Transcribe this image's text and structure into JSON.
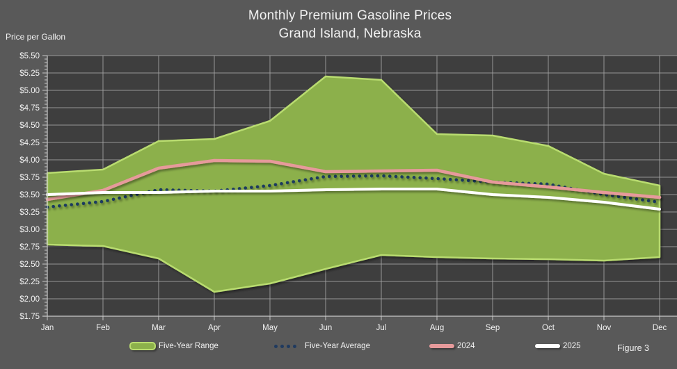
{
  "title": {
    "line1": "Monthly Premium Gasoline Prices",
    "line2": "Grand Island, Nebraska"
  },
  "y_axis_title": "Price per Gallon",
  "figure_label": "Figure 3",
  "legend": [
    {
      "label": "Five-Year Range",
      "swatch": "band"
    },
    {
      "label": "Five-Year Average",
      "swatch": "dotted"
    },
    {
      "label": "2024",
      "swatch": "line"
    },
    {
      "label": "2025",
      "swatch": "line"
    }
  ],
  "chart_data": {
    "type": "area",
    "subtype": "range-band-with-lines",
    "title": "Monthly Premium Gasoline Prices  Grand Island, Nebraska",
    "xlabel": "",
    "ylabel": "Price per Gallon",
    "categories": [
      "Jan",
      "Feb",
      "Mar",
      "Apr",
      "May",
      "Jun",
      "Jul",
      "Aug",
      "Sep",
      "Oct",
      "Nov",
      "Dec"
    ],
    "y_tick_labels": [
      "$5.50",
      "$5.25",
      "$5.00",
      "$4.75",
      "$4.50",
      "$4.25",
      "$4.00",
      "$3.75",
      "$3.50",
      "$3.25",
      "$3.00",
      "$2.75",
      "$2.50",
      "$2.25",
      "$2.00",
      "$1.75"
    ],
    "ylim": [
      1.75,
      5.5
    ],
    "y_major_step": 0.25,
    "grid": true,
    "legend_position": "bottom",
    "series": [
      {
        "name": "Five-Year Range (max)",
        "role": "band-top",
        "values": [
          3.81,
          3.86,
          4.27,
          4.3,
          4.56,
          5.2,
          5.15,
          4.37,
          4.35,
          4.2,
          3.8,
          3.63
        ]
      },
      {
        "name": "Five-Year Range (min)",
        "role": "band-bottom",
        "values": [
          2.78,
          2.76,
          2.58,
          2.1,
          2.22,
          2.43,
          2.63,
          2.6,
          2.58,
          2.57,
          2.55,
          2.6
        ]
      },
      {
        "name": "Five-Year Average",
        "role": "dotted-line",
        "values": [
          3.32,
          3.4,
          3.57,
          3.55,
          3.63,
          3.76,
          3.77,
          3.73,
          3.68,
          3.65,
          3.5,
          3.39
        ]
      },
      {
        "name": "2024",
        "role": "line",
        "values": [
          3.43,
          3.56,
          3.88,
          3.99,
          3.98,
          3.83,
          3.84,
          3.85,
          3.68,
          3.61,
          3.53,
          3.46
        ]
      },
      {
        "name": "2025",
        "role": "line",
        "values": [
          3.5,
          3.53,
          3.53,
          3.55,
          3.55,
          3.57,
          3.58,
          3.58,
          3.5,
          3.46,
          3.39,
          3.29
        ]
      }
    ],
    "colors": {
      "background": "#595959",
      "plot_background": "#3e3e3e",
      "gridline": "#a6a6a6",
      "axis": "#c8c8c8",
      "range_fill": "#8cb04b",
      "range_edge": "#b9dc6f",
      "average": "#1f3a5f",
      "y2024": "#e69a9b",
      "y2025": "#ffffff",
      "text": "#f2f2f2"
    }
  }
}
